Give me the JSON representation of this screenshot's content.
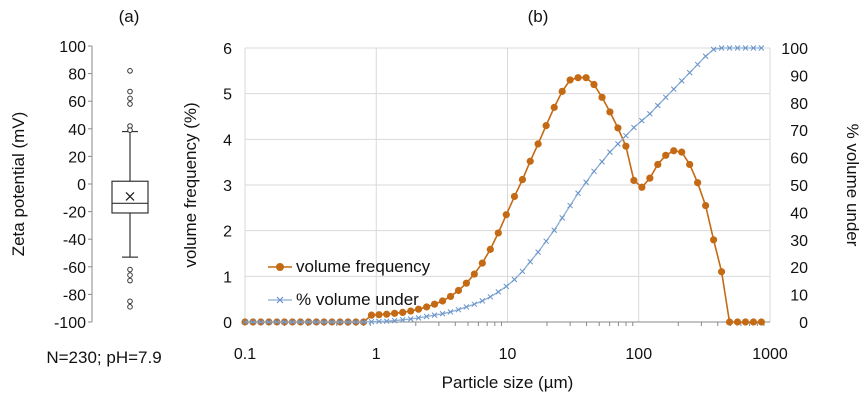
{
  "chart_data": [
    {
      "type": "box",
      "panel_label": "(a)",
      "ylabel": "Zeta potential (mV)",
      "ylim": [
        -100,
        100
      ],
      "yticks": [
        100,
        80,
        60,
        40,
        20,
        0,
        -20,
        -40,
        -60,
        -80,
        -100
      ],
      "footnote": "N=230; pH=7.9",
      "box": {
        "q1": -21,
        "median": -14,
        "q3": 2,
        "mean": -9,
        "whisker_low": -53,
        "whisker_high": 38
      },
      "outliers": [
        82,
        67,
        62,
        58,
        42,
        39,
        -62,
        -66,
        -70,
        -85,
        -89
      ],
      "colors": {
        "box": "#333333"
      }
    },
    {
      "type": "line",
      "panel_label": "(b)",
      "xlabel": "Particle size (µm)",
      "ylabel": "volume frequency (%)",
      "y2label": "% volume under",
      "xscale": "log",
      "xlim": [
        0.1,
        1000
      ],
      "ylim": [
        0,
        6
      ],
      "y2lim": [
        0,
        100
      ],
      "xticks": [
        0.1,
        1,
        10,
        100,
        1000
      ],
      "xtick_labels": [
        "0.1",
        "1",
        "10",
        "100",
        "1000"
      ],
      "yticks": [
        0,
        1,
        2,
        3,
        4,
        5,
        6
      ],
      "y2ticks": [
        0,
        10,
        20,
        30,
        40,
        50,
        60,
        70,
        80,
        90,
        100
      ],
      "legend_position": "center-left",
      "series": [
        {
          "name": "volume frequency",
          "axis": "left",
          "color": "#c56a14",
          "marker": "circle",
          "x": [
            0.1,
            0.115,
            0.132,
            0.152,
            0.175,
            0.2,
            0.23,
            0.265,
            0.305,
            0.35,
            0.4,
            0.46,
            0.53,
            0.61,
            0.7,
            0.8,
            0.92,
            1.05,
            1.2,
            1.38,
            1.59,
            1.83,
            2.1,
            2.42,
            2.78,
            3.2,
            3.68,
            4.23,
            4.86,
            5.59,
            6.43,
            7.4,
            8.51,
            9.79,
            11.3,
            13,
            14.9,
            17.1,
            19.7,
            22.7,
            26.1,
            30,
            34.5,
            39.7,
            45.6,
            52.5,
            60.3,
            69.4,
            79.8,
            91.8,
            105.6,
            121.5,
            139.7,
            160.6,
            184.8,
            212.5,
            244.4,
            281,
            323.2,
            371.7,
            427.5,
            491.7,
            565.5,
            650.3,
            747.8,
            860
          ],
          "values": [
            0,
            0,
            0,
            0,
            0,
            0,
            0,
            0,
            0,
            0,
            0,
            0,
            0,
            0,
            0,
            0,
            0.15,
            0.16,
            0.17,
            0.19,
            0.21,
            0.24,
            0.28,
            0.33,
            0.39,
            0.46,
            0.56,
            0.69,
            0.85,
            1.05,
            1.29,
            1.59,
            1.95,
            2.35,
            2.75,
            3.12,
            3.52,
            3.9,
            4.3,
            4.7,
            5.05,
            5.3,
            5.35,
            5.35,
            5.2,
            4.92,
            4.6,
            4.25,
            3.85,
            3.1,
            2.95,
            3.15,
            3.45,
            3.65,
            3.75,
            3.72,
            3.45,
            3.05,
            2.55,
            1.8,
            1.1,
            0,
            0,
            0,
            0,
            0
          ]
        },
        {
          "name": "% volume under",
          "axis": "right",
          "color": "#8aaed8",
          "marker": "x",
          "x": [
            0.1,
            0.115,
            0.132,
            0.152,
            0.175,
            0.2,
            0.23,
            0.265,
            0.305,
            0.35,
            0.4,
            0.46,
            0.53,
            0.61,
            0.7,
            0.8,
            0.92,
            1.05,
            1.2,
            1.38,
            1.59,
            1.83,
            2.1,
            2.42,
            2.78,
            3.2,
            3.68,
            4.23,
            4.86,
            5.59,
            6.43,
            7.4,
            8.51,
            9.79,
            11.3,
            13,
            14.9,
            17.1,
            19.7,
            22.7,
            26.1,
            30,
            34.5,
            39.7,
            45.6,
            52.5,
            60.3,
            69.4,
            79.8,
            91.8,
            105.6,
            121.5,
            139.7,
            160.6,
            184.8,
            212.5,
            244.4,
            281,
            323.2,
            371.7,
            427.5,
            491.7,
            565.5,
            650.3,
            747.8,
            860
          ],
          "values": [
            0,
            0,
            0,
            0,
            0,
            0,
            0,
            0,
            0,
            0,
            0,
            0,
            0,
            0,
            0,
            0,
            0.1,
            0.2,
            0.3,
            0.5,
            0.8,
            1.1,
            1.5,
            2,
            2.5,
            3,
            3.7,
            4.5,
            5.5,
            6.5,
            7.7,
            9.2,
            11,
            13,
            15.5,
            18.5,
            22,
            25.5,
            29.5,
            33.5,
            38,
            42.5,
            47,
            51,
            55,
            58.5,
            62,
            65,
            68,
            71,
            73.5,
            76,
            79,
            82,
            85,
            88,
            91,
            94,
            97,
            99.5,
            100,
            100,
            100,
            100,
            100,
            100
          ]
        }
      ]
    }
  ]
}
